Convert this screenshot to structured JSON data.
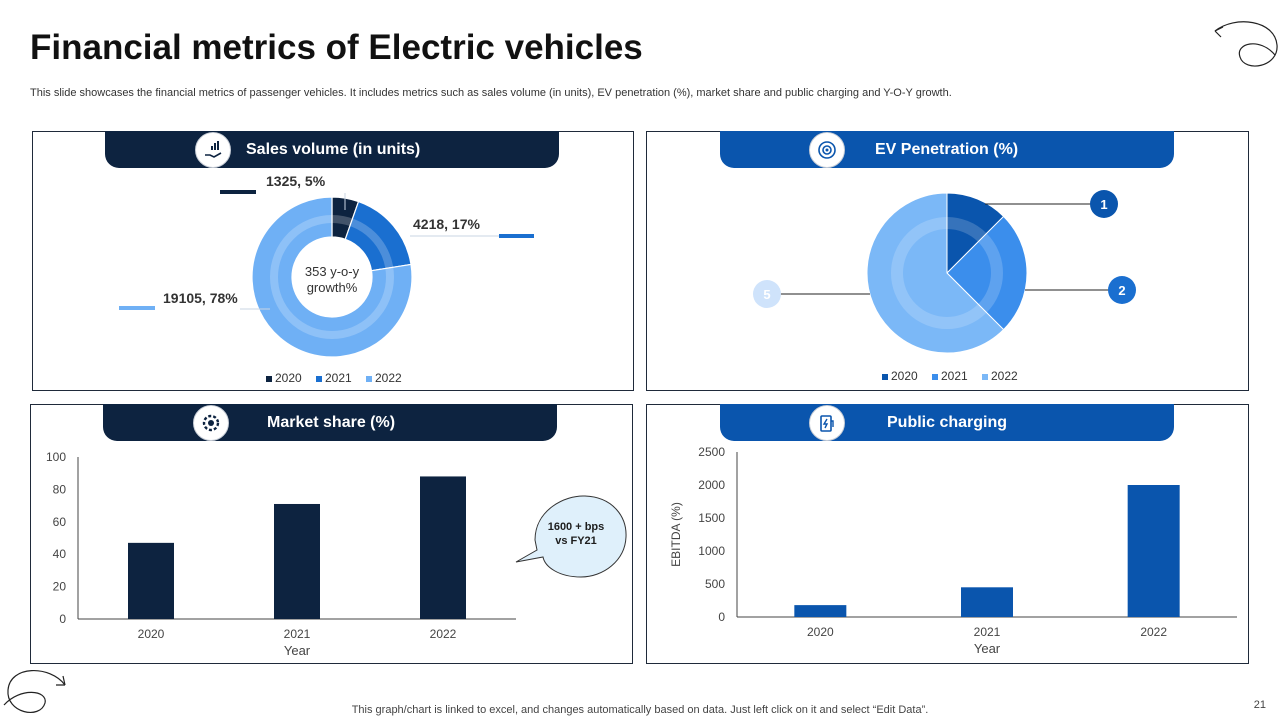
{
  "title": "Financial metrics of Electric vehicles",
  "subtitle": "This slide showcases the financial metrics of passenger vehicles. It includes metrics such as sales volume (in units), EV penetration (%), market share and public charging and Y-O-Y growth.",
  "footer": "This graph/chart is linked to excel, and changes automatically based on data. Just left click on it and select “Edit Data”.",
  "page_number": "21",
  "panels": {
    "sales": {
      "title": "Sales volume (in units)",
      "icon": "hand-coins-icon",
      "center_text_1": "353 y-o-y",
      "center_text_2": "growth%"
    },
    "ev": {
      "title": "EV Penetration (%)",
      "icon": "target-icon"
    },
    "market": {
      "title": "Market share (%)",
      "icon": "gear-chart-icon",
      "callout_1": "1600 + bps",
      "callout_2": "vs FY21"
    },
    "charging": {
      "title": "Public charging",
      "icon": "charging-station-icon"
    }
  },
  "colors": {
    "dark_navy": "#0d2340",
    "blue": "#0a55ad",
    "mid_blue": "#1a6fd0",
    "light_blue": "#6fb0f5"
  },
  "chart_data": [
    {
      "type": "pie",
      "variant": "donut",
      "title": "Sales volume (in units)",
      "legend": [
        "2020",
        "2021",
        "2022"
      ],
      "legend_position": "bottom",
      "slices": [
        {
          "label": "2020",
          "value": 1325,
          "percent": 5,
          "data_label": "1325, 5%"
        },
        {
          "label": "2021",
          "value": 4218,
          "percent": 17,
          "data_label": "4218, 17%"
        },
        {
          "label": "2022",
          "value": 19105,
          "percent": 78,
          "data_label": "19105, 78%"
        }
      ]
    },
    {
      "type": "pie",
      "title": "EV Penetration (%)",
      "legend": [
        "2020",
        "2021",
        "2022"
      ],
      "legend_position": "bottom",
      "slices": [
        {
          "label": "2020",
          "value": 1,
          "data_label": "1"
        },
        {
          "label": "2021",
          "value": 2,
          "data_label": "2"
        },
        {
          "label": "2022",
          "value": 5,
          "data_label": "5"
        }
      ]
    },
    {
      "type": "bar",
      "title": "Market share (%)",
      "categories": [
        "2020",
        "2021",
        "2022"
      ],
      "values": [
        47,
        71,
        88
      ],
      "xlabel": "Year",
      "ylabel": "",
      "ylim": [
        0,
        100
      ],
      "yticks": [
        "0",
        "20",
        "40",
        "60",
        "80",
        "100"
      ],
      "grid": false
    },
    {
      "type": "bar",
      "title": "Public charging",
      "categories": [
        "2020",
        "2021",
        "2022"
      ],
      "values": [
        180,
        450,
        2000
      ],
      "xlabel": "Year",
      "ylabel": "EBITDA (%)",
      "ylim": [
        0,
        2500
      ],
      "yticks": [
        "0",
        "500",
        "1000",
        "1500",
        "2000",
        "2500"
      ],
      "grid": false
    }
  ]
}
